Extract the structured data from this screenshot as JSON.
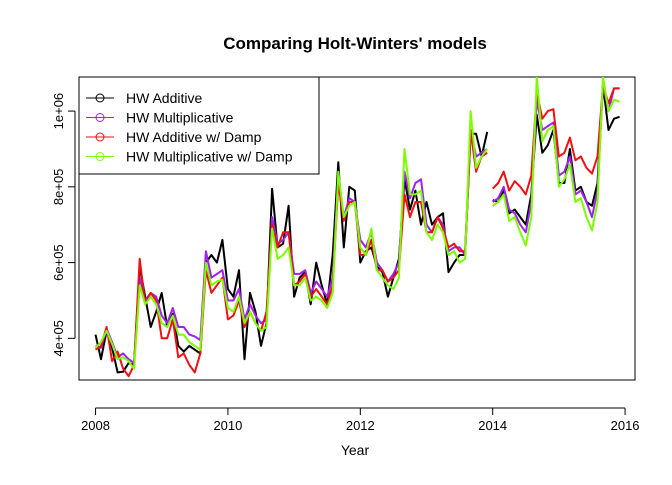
{
  "chart_data": {
    "type": "line",
    "title": "Comparing Holt-Winters' models",
    "xlabel": "Year",
    "ylabel": "",
    "xlim": [
      2007.75,
      2016.15
    ],
    "ylim": [
      290000,
      1090000
    ],
    "x_ticks": [
      2008,
      2010,
      2012,
      2014,
      2016
    ],
    "x_tick_labels": [
      "2008",
      "2010",
      "2012",
      "2014",
      "2016"
    ],
    "y_ticks": [
      400000,
      600000,
      800000,
      1000000
    ],
    "y_tick_labels": [
      "4e+05",
      "6e+05",
      "8e+05",
      "1e+06"
    ],
    "grid": false,
    "legend_position": "top-left",
    "series": [
      {
        "name": "HW Additive",
        "color": "#000000",
        "segments": [
          {
            "x": [
              2008.0,
              2008.083,
              2008.167,
              2008.25,
              2008.333,
              2008.417,
              2008.5,
              2008.583,
              2008.667,
              2008.75,
              2008.833,
              2008.917,
              2009.0,
              2009.083,
              2009.167,
              2009.25,
              2009.333,
              2009.417,
              2009.5,
              2009.583,
              2009.667,
              2009.75,
              2009.833,
              2009.917,
              2010.0,
              2010.083,
              2010.167,
              2010.25,
              2010.333,
              2010.417,
              2010.5,
              2010.583,
              2010.667,
              2010.75,
              2010.833,
              2010.917,
              2011.0,
              2011.083,
              2011.167,
              2011.25,
              2011.333,
              2011.417,
              2011.5,
              2011.583,
              2011.667,
              2011.75,
              2011.833,
              2011.917,
              2012.0,
              2012.083,
              2012.167,
              2012.25,
              2012.333,
              2012.417,
              2012.5,
              2012.583,
              2012.667,
              2012.75,
              2012.833,
              2012.917,
              2013.0,
              2013.083,
              2013.167,
              2013.25,
              2013.333,
              2013.417,
              2013.5,
              2013.583,
              2013.667,
              2013.75,
              2013.833,
              2013.917
            ],
            "y": [
              410000,
              345000,
              420000,
              375000,
              310000,
              312000,
              335000,
              330000,
              590000,
              510000,
              430000,
              470000,
              520000,
              430000,
              465000,
              380000,
              365000,
              380000,
              370000,
              360000,
              600000,
              620000,
              600000,
              660000,
              530000,
              510000,
              580000,
              345000,
              520000,
              470000,
              380000,
              440000,
              795000,
              640000,
              650000,
              750000,
              510000,
              560000,
              575000,
              490000,
              600000,
              540000,
              490000,
              620000,
              865000,
              640000,
              800000,
              790000,
              600000,
              630000,
              640000,
              590000,
              575000,
              510000,
              560000,
              610000,
              820000,
              740000,
              790000,
              700000,
              760000,
              700000,
              720000,
              730000,
              575000,
              600000,
              620000,
              620000,
              940000,
              940000,
              880000,
              945000
            ]
          },
          {
            "x": [
              2014.0,
              2014.083,
              2014.167,
              2014.25,
              2014.333,
              2014.417,
              2014.5,
              2014.583,
              2014.667,
              2014.75,
              2014.833,
              2014.917,
              2015.0,
              2015.083,
              2015.167,
              2015.25,
              2015.333,
              2015.417,
              2015.5,
              2015.583,
              2015.667,
              2015.75,
              2015.833,
              2015.917
            ],
            "y": [
              765000,
              760000,
              790000,
              730000,
              740000,
              720000,
              700000,
              780000,
              990000,
              890000,
              910000,
              950000,
              810000,
              810000,
              900000,
              790000,
              800000,
              760000,
              750000,
              810000,
              1070000,
              950000,
              980000,
              985000
            ]
          }
        ]
      },
      {
        "name": "HW Multiplicative",
        "color": "#a020f0",
        "segments": [
          {
            "x": [
              2008.0,
              2008.083,
              2008.167,
              2008.25,
              2008.333,
              2008.417,
              2008.5,
              2008.583,
              2008.667,
              2008.75,
              2008.833,
              2008.917,
              2009.0,
              2009.083,
              2009.167,
              2009.25,
              2009.333,
              2009.417,
              2009.5,
              2009.583,
              2009.667,
              2009.75,
              2009.833,
              2009.917,
              2010.0,
              2010.083,
              2010.167,
              2010.25,
              2010.333,
              2010.417,
              2010.5,
              2010.583,
              2010.667,
              2010.75,
              2010.833,
              2010.917,
              2011.0,
              2011.083,
              2011.167,
              2011.25,
              2011.333,
              2011.417,
              2011.5,
              2011.583,
              2011.667,
              2011.75,
              2011.833,
              2011.917,
              2012.0,
              2012.083,
              2012.167,
              2012.25,
              2012.333,
              2012.417,
              2012.5,
              2012.583,
              2012.667,
              2012.75,
              2012.833,
              2012.917,
              2013.0,
              2013.083,
              2013.167,
              2013.25,
              2013.333,
              2013.417,
              2013.5,
              2013.583,
              2013.667,
              2013.75,
              2013.833,
              2013.917
            ],
            "y": [
              380000,
              375000,
              425000,
              390000,
              350000,
              360000,
              345000,
              335000,
              560000,
              500000,
              520000,
              510000,
              460000,
              440000,
              480000,
              430000,
              430000,
              410000,
              405000,
              395000,
              630000,
              560000,
              570000,
              580000,
              500000,
              500000,
              530000,
              450000,
              490000,
              460000,
              440000,
              450000,
              720000,
              650000,
              660000,
              680000,
              570000,
              570000,
              580000,
              520000,
              550000,
              530000,
              510000,
              560000,
              820000,
              720000,
              770000,
              760000,
              660000,
              640000,
              680000,
              600000,
              580000,
              550000,
              570000,
              600000,
              840000,
              770000,
              810000,
              820000,
              700000,
              680000,
              720000,
              700000,
              630000,
              640000,
              640000,
              620000,
              950000,
              880000,
              890000,
              900000
            ]
          },
          {
            "x": [
              2014.0,
              2014.083,
              2014.167,
              2014.25,
              2014.333,
              2014.417,
              2014.5,
              2014.583,
              2014.667,
              2014.75,
              2014.833,
              2014.917,
              2015.0,
              2015.083,
              2015.167,
              2015.25,
              2015.333,
              2015.417,
              2015.5,
              2015.583,
              2015.667,
              2015.75,
              2015.833,
              2015.917
            ],
            "y": [
              760000,
              770000,
              800000,
              740000,
              730000,
              700000,
              680000,
              760000,
              1030000,
              950000,
              960000,
              970000,
              830000,
              840000,
              880000,
              780000,
              790000,
              760000,
              720000,
              790000,
              1070000,
              1000000,
              1060000,
              1060000
            ]
          }
        ]
      },
      {
        "name": "HW Additive w/ Damp",
        "color": "#ee1111",
        "segments": [
          {
            "x": [
              2008.0,
              2008.083,
              2008.167,
              2008.25,
              2008.333,
              2008.417,
              2008.5,
              2008.583,
              2008.667,
              2008.75,
              2008.833,
              2008.917,
              2009.0,
              2009.083,
              2009.167,
              2009.25,
              2009.333,
              2009.417,
              2009.5,
              2009.583,
              2009.667,
              2009.75,
              2009.833,
              2009.917,
              2010.0,
              2010.083,
              2010.167,
              2010.25,
              2010.333,
              2010.417,
              2010.5,
              2010.583,
              2010.667,
              2010.75,
              2010.833,
              2010.917,
              2011.0,
              2011.083,
              2011.167,
              2011.25,
              2011.333,
              2011.417,
              2011.5,
              2011.583,
              2011.667,
              2011.75,
              2011.833,
              2011.917,
              2012.0,
              2012.083,
              2012.167,
              2012.25,
              2012.333,
              2012.417,
              2012.5,
              2012.583,
              2012.667,
              2012.75,
              2012.833,
              2012.917,
              2013.0,
              2013.083,
              2013.167,
              2013.25,
              2013.333,
              2013.417,
              2013.5,
              2013.583,
              2013.667,
              2013.75,
              2013.833,
              2013.917
            ],
            "y": [
              370000,
              380000,
              430000,
              340000,
              365000,
              320000,
              300000,
              330000,
              610000,
              490000,
              520000,
              500000,
              400000,
              400000,
              450000,
              350000,
              360000,
              330000,
              310000,
              360000,
              580000,
              520000,
              540000,
              560000,
              450000,
              460000,
              500000,
              430000,
              470000,
              440000,
              420000,
              470000,
              700000,
              640000,
              680000,
              680000,
              540000,
              550000,
              570000,
              510000,
              530000,
              510000,
              490000,
              540000,
              810000,
              710000,
              760000,
              760000,
              620000,
              620000,
              660000,
              580000,
              580000,
              550000,
              560000,
              580000,
              780000,
              720000,
              760000,
              760000,
              680000,
              680000,
              720000,
              690000,
              640000,
              650000,
              630000,
              630000,
              950000,
              840000,
              880000,
              890000
            ]
          },
          {
            "x": [
              2014.0,
              2014.083,
              2014.167,
              2014.25,
              2014.333,
              2014.417,
              2014.5,
              2014.583,
              2014.667,
              2014.75,
              2014.833,
              2014.917,
              2015.0,
              2015.083,
              2015.167,
              2015.25,
              2015.333,
              2015.417,
              2015.5,
              2015.583,
              2015.667,
              2015.75,
              2015.833,
              2015.917
            ],
            "y": [
              795000,
              810000,
              840000,
              790000,
              815000,
              800000,
              780000,
              830000,
              1050000,
              980000,
              1000000,
              1005000,
              880000,
              890000,
              930000,
              870000,
              880000,
              850000,
              835000,
              880000,
              1070000,
              1020000,
              1060000,
              1060000
            ]
          }
        ]
      },
      {
        "name": "HW Multiplicative w/ Damp",
        "color": "#7cfc00",
        "segments": [
          {
            "x": [
              2008.0,
              2008.083,
              2008.167,
              2008.25,
              2008.333,
              2008.417,
              2008.5,
              2008.583,
              2008.667,
              2008.75,
              2008.833,
              2008.917,
              2009.0,
              2009.083,
              2009.167,
              2009.25,
              2009.333,
              2009.417,
              2009.5,
              2009.583,
              2009.667,
              2009.75,
              2009.833,
              2009.917,
              2010.0,
              2010.083,
              2010.167,
              2010.25,
              2010.333,
              2010.417,
              2010.5,
              2010.583,
              2010.667,
              2010.75,
              2010.833,
              2010.917,
              2011.0,
              2011.083,
              2011.167,
              2011.25,
              2011.333,
              2011.417,
              2011.5,
              2011.583,
              2011.667,
              2011.75,
              2011.833,
              2011.917,
              2012.0,
              2012.083,
              2012.167,
              2012.25,
              2012.333,
              2012.417,
              2012.5,
              2012.583,
              2012.667,
              2012.75,
              2012.833,
              2012.917,
              2013.0,
              2013.083,
              2013.167,
              2013.25,
              2013.333,
              2013.417,
              2013.5,
              2013.583,
              2013.667,
              2013.75,
              2013.833,
              2013.917
            ],
            "y": [
              375000,
              390000,
              420000,
              385000,
              345000,
              350000,
              340000,
              320000,
              540000,
              490000,
              510000,
              490000,
              440000,
              430000,
              460000,
              410000,
              410000,
              390000,
              380000,
              370000,
              600000,
              540000,
              550000,
              555000,
              480000,
              470000,
              510000,
              440000,
              470000,
              440000,
              420000,
              430000,
              690000,
              610000,
              620000,
              640000,
              540000,
              540000,
              560000,
              500000,
              510000,
              500000,
              480000,
              520000,
              840000,
              720000,
              750000,
              760000,
              640000,
              620000,
              690000,
              580000,
              560000,
              540000,
              530000,
              560000,
              900000,
              780000,
              780000,
              790000,
              680000,
              660000,
              700000,
              680000,
              620000,
              630000,
              600000,
              610000,
              1000000,
              850000,
              880000,
              900000
            ]
          },
          {
            "x": [
              2014.0,
              2014.083,
              2014.167,
              2014.25,
              2014.333,
              2014.417,
              2014.5,
              2014.583,
              2014.667,
              2014.75,
              2014.833,
              2014.917,
              2015.0,
              2015.083,
              2015.167,
              2015.25,
              2015.333,
              2015.417,
              2015.5,
              2015.583,
              2015.667,
              2015.75,
              2015.833,
              2015.917
            ],
            "y": [
              750000,
              760000,
              780000,
              710000,
              720000,
              680000,
              645000,
              720000,
              1090000,
              920000,
              950000,
              960000,
              800000,
              820000,
              860000,
              760000,
              770000,
              720000,
              685000,
              760000,
              1090000,
              1000000,
              1030000,
              1025000
            ]
          }
        ]
      }
    ]
  }
}
